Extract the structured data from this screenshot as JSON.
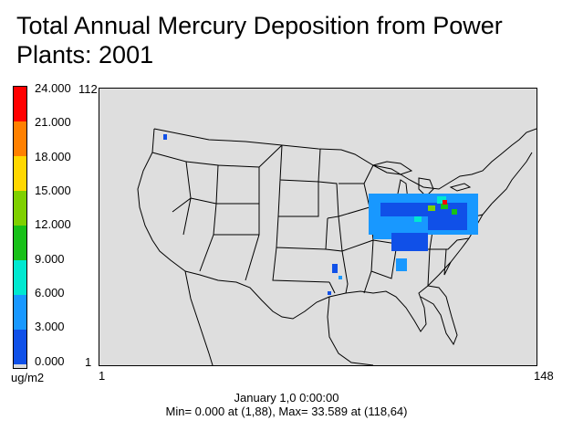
{
  "title": "Total Annual Mercury Deposition from Power Plants: 2001",
  "legend": {
    "ticks": [
      "24.000",
      "21.000",
      "18.000",
      "15.000",
      "12.000",
      "9.000",
      "6.000",
      "3.000",
      "0.000"
    ],
    "colors": [
      "#ff0000",
      "#ff8000",
      "#ffd700",
      "#7fd000",
      "#18c018",
      "#00e8d0",
      "#1898ff",
      "#1050e8",
      "#dcdcdc"
    ],
    "unit": "ug/m2",
    "row_top": "112",
    "row_bottom": "1"
  },
  "axis": {
    "col_left": "1",
    "col_right": "148"
  },
  "footer": {
    "date": "January 1,0 0:00:00",
    "stats": "Min=  0.000 at (1,88), Max=  33.589 at (118,64)"
  },
  "map": {
    "background": "#dedede",
    "grid_columns": 148,
    "grid_rows": 112
  }
}
